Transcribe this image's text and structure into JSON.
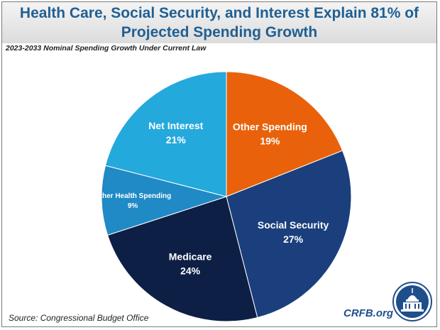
{
  "header": {
    "title_line1": "Health Care, Social Security, and Interest Explain 81% of",
    "title_line2": "Projected Spending Growth"
  },
  "subtitle": "2023-2033 Nominal Spending Growth Under Current Law",
  "source": "Source: Congressional Budget Office",
  "brand": "CRFB.org",
  "chart_data": {
    "type": "pie",
    "title": "Health Care, Social Security, and Interest Explain 81% of Projected Spending Growth",
    "subtitle": "2023-2033 Nominal Spending Growth Under Current Law",
    "start_angle_deg": 0,
    "direction": "clockwise",
    "slices": [
      {
        "label": "Other Spending",
        "value": 19,
        "display": "19%",
        "color": "#e9620b",
        "text_color": "#ffffff"
      },
      {
        "label": "Social Security",
        "value": 27,
        "display": "27%",
        "color": "#1a3f7c",
        "text_color": "#ffffff"
      },
      {
        "label": "Medicare",
        "value": 24,
        "display": "24%",
        "color": "#0d1f45",
        "text_color": "#ffffff"
      },
      {
        "label": "Other Health Spending",
        "value": 9,
        "display": "9%",
        "color": "#1f8ac5",
        "text_color": "#ffffff"
      },
      {
        "label": "Net Interest",
        "value": 21,
        "display": "21%",
        "color": "#24a9dc",
        "text_color": "#ffffff"
      }
    ]
  }
}
